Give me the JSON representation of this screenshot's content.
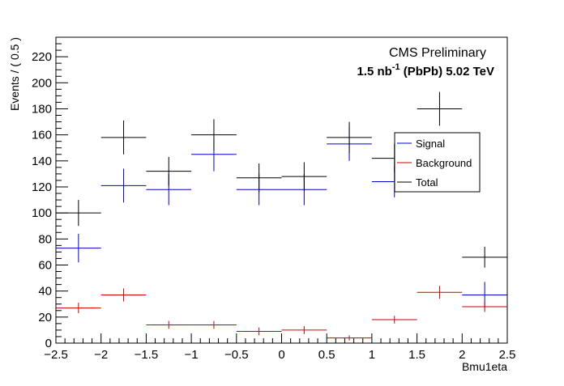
{
  "chart_data": {
    "type": "scatter",
    "xlabel": "Bmu1eta",
    "ylabel": "Events / ( 0.5 )",
    "xlim": [
      -2.5,
      2.5
    ],
    "ylim": [
      0,
      235
    ],
    "x_ticks": [
      -2.5,
      -2,
      -1.5,
      -1,
      -0.5,
      0,
      0.5,
      1,
      1.5,
      2,
      2.5
    ],
    "x_tick_labels": [
      "−2.5",
      "−2",
      "−1.5",
      "−1",
      "−0.5",
      "0",
      "0.5",
      "1",
      "1.5",
      "2",
      "2.5"
    ],
    "y_ticks": [
      0,
      20,
      40,
      60,
      80,
      100,
      120,
      140,
      160,
      180,
      200,
      220
    ],
    "y_tick_labels": [
      "0",
      "20",
      "40",
      "60",
      "80",
      "100",
      "120",
      "140",
      "160",
      "180",
      "200",
      "220"
    ],
    "bin_width": 0.5,
    "x": [
      -2.25,
      -1.75,
      -1.25,
      -0.75,
      -0.25,
      0.25,
      0.75,
      1.25,
      1.75,
      2.25
    ],
    "series": [
      {
        "name": "Signal",
        "color": "#0000cc",
        "values": [
          73,
          121,
          118,
          145,
          118,
          118,
          153,
          124,
          null,
          37
        ],
        "errors": [
          11,
          13,
          12,
          13,
          12,
          12,
          13,
          12,
          null,
          10
        ]
      },
      {
        "name": "Background",
        "color": "#cc0000",
        "values": [
          27,
          37,
          14,
          14,
          9,
          10,
          4,
          18,
          39,
          28
        ],
        "errors": [
          4,
          5,
          3,
          3,
          3,
          3,
          2,
          3,
          5,
          4
        ]
      },
      {
        "name": "Total",
        "color": "#000000",
        "values": [
          100,
          158,
          132,
          160,
          127,
          128,
          158,
          142,
          180,
          66
        ],
        "errors": [
          10,
          13,
          11,
          12,
          11,
          11,
          12,
          11,
          13,
          8
        ]
      }
    ],
    "legend_position": "right",
    "grid": false
  },
  "header": {
    "cms_label": "CMS Preliminary",
    "lumi_prefix": "1.5 nb",
    "lumi_superscript": "-1",
    "lumi_suffix": " (PbPb) 5.02 TeV"
  }
}
